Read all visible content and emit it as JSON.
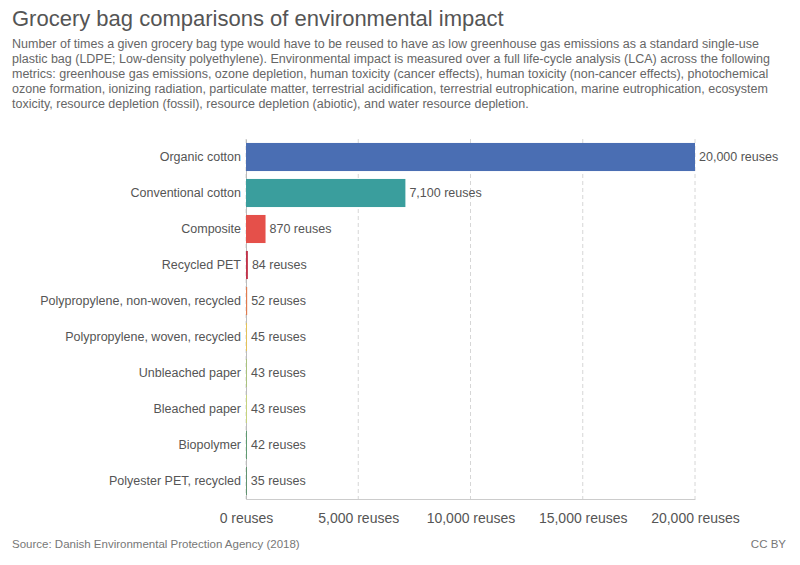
{
  "chart_data": {
    "type": "bar",
    "orientation": "horizontal",
    "title": "Grocery bag comparisons of environmental impact",
    "subtitle": "Number of times a given grocery bag type would have to be reused to have as low greenhouse gas emissions as a standard single-use plastic bag (LDPE; Low-density polyethylene). Environmental impact is measured over a full life-cycle analysis (LCA) across the following metrics: greenhouse gas emissions, ozone depletion, human toxicity (cancer effects), human toxicity (non-cancer effects), photochemical ozone formation, ionizing radiation, particulate matter, terrestrial acidification, terrestrial eutrophication, marine eutrophication, ecosystem toxicity, resource depletion (fossil), resource depletion (abiotic), and water resource depletion.",
    "source": "Source: Danish Environmental Protection Agency (2018)",
    "license": "CC BY",
    "categories": [
      "Organic cotton",
      "Conventional cotton",
      "Composite",
      "Recycled PET",
      "Polypropylene, non-woven, recycled",
      "Polypropylene, woven, recycled",
      "Unbleached paper",
      "Bleached paper",
      "Biopolymer",
      "Polyester PET, recycled"
    ],
    "values": [
      20000,
      7100,
      870,
      84,
      52,
      45,
      43,
      43,
      42,
      35
    ],
    "value_labels": [
      "20,000 reuses",
      "7,100 reuses",
      "870 reuses",
      "84 reuses",
      "52 reuses",
      "45 reuses",
      "43 reuses",
      "43 reuses",
      "42 reuses",
      "35 reuses"
    ],
    "colors": [
      "#4a6eb3",
      "#3a9e9d",
      "#e5504a",
      "#c0334a",
      "#e07b4f",
      "#e3c25a",
      "#a9c27c",
      "#c6d47c",
      "#5b9a6e",
      "#4b8a5e"
    ],
    "data_labels": true,
    "grid": true,
    "xlim": [
      0,
      20000
    ],
    "xticks": [
      {
        "value": 0,
        "label": "0 reuses"
      },
      {
        "value": 5000,
        "label": "5,000 reuses"
      },
      {
        "value": 10000,
        "label": "10,000 reuses"
      },
      {
        "value": 15000,
        "label": "15,000 reuses"
      },
      {
        "value": 20000,
        "label": "20,000 reuses"
      }
    ]
  }
}
